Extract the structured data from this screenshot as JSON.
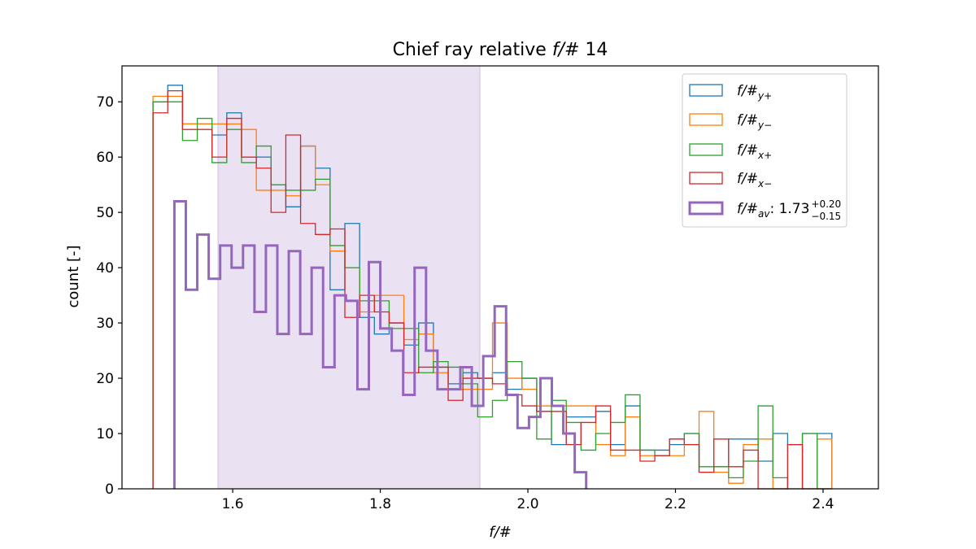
{
  "chart_data": {
    "type": "histogram-step",
    "title": "Chief ray relative f/# 14",
    "xlabel": "f/#",
    "ylabel": "count [-]",
    "xlim": [
      1.45,
      2.475
    ],
    "ylim": [
      0,
      76.5
    ],
    "xticks": [
      1.6,
      1.8,
      2.0,
      2.2,
      2.4
    ],
    "xtick_labels": [
      "1.6",
      "1.8",
      "2.0",
      "2.2",
      "2.4"
    ],
    "yticks": [
      0,
      10,
      20,
      30,
      40,
      50,
      60,
      70
    ],
    "ytick_labels": [
      "0",
      "10",
      "20",
      "30",
      "40",
      "50",
      "60",
      "70"
    ],
    "grid": false,
    "legend_position": "top-right",
    "shaded_interval": {
      "x0": 1.58,
      "x1": 1.935,
      "color": "#9467bd"
    },
    "series": [
      {
        "name_main": "f/#",
        "name_sub": "y+",
        "name_sup": "",
        "color": "#1f77b4",
        "linewidth": 1.3,
        "start": 1.492,
        "width": 0.02,
        "values": [
          70,
          73,
          66,
          66,
          64,
          68,
          60,
          60,
          55,
          51,
          62,
          58,
          36,
          48,
          31,
          28,
          30,
          26,
          30,
          22,
          19,
          21,
          20,
          21,
          18,
          20,
          14,
          8,
          13,
          13,
          14,
          8,
          15,
          7,
          7,
          8,
          10,
          3,
          4,
          9,
          9,
          5,
          10,
          8,
          10,
          10
        ]
      },
      {
        "name_main": "f/#",
        "name_sub": "y−",
        "name_sup": "",
        "color": "#ff7f0e",
        "linewidth": 1.3,
        "start": 1.492,
        "width": 0.02,
        "values": [
          71,
          71,
          66,
          66,
          66,
          66,
          65,
          54,
          54,
          53,
          62,
          55,
          43,
          40,
          32,
          35,
          35,
          27,
          28,
          21,
          18,
          18,
          18,
          30,
          20,
          18,
          15,
          15,
          15,
          15,
          8,
          6,
          13,
          6,
          6,
          6,
          8,
          14,
          3,
          1,
          8,
          9,
          0,
          8,
          0,
          9
        ]
      },
      {
        "name_main": "f/#",
        "name_sub": "x+",
        "name_sup": "",
        "color": "#2ca02c",
        "linewidth": 1.3,
        "start": 1.492,
        "width": 0.02,
        "values": [
          70,
          70,
          63,
          67,
          59,
          65,
          59,
          62,
          55,
          54,
          54,
          56,
          44,
          40,
          34,
          34,
          29,
          29,
          21,
          23,
          22,
          19,
          13,
          16,
          23,
          20,
          9,
          16,
          12,
          7,
          10,
          12,
          17,
          7,
          6,
          9,
          10,
          4,
          4,
          2,
          5,
          15,
          2,
          0,
          10,
          0
        ]
      },
      {
        "name_main": "f/#",
        "name_sub": "x−",
        "name_sup": "",
        "color": "#d62728",
        "linewidth": 1.3,
        "start": 1.492,
        "width": 0.02,
        "values": [
          68,
          72,
          65,
          65,
          60,
          67,
          60,
          58,
          50,
          64,
          48,
          46,
          47,
          31,
          35,
          32,
          30,
          21,
          22,
          22,
          16,
          20,
          20,
          19,
          17,
          15,
          14,
          14,
          8,
          12,
          15,
          7,
          7,
          5,
          6,
          9,
          8,
          3,
          9,
          4,
          7,
          0,
          0,
          8,
          0,
          0
        ]
      },
      {
        "name_main": "f/#",
        "name_sub": "av",
        "name_sup": ": 1.73",
        "name_upper": "+0.20",
        "name_lower": "−0.15",
        "color": "#9467bd",
        "linewidth": 3,
        "start": 1.521,
        "width": 0.0155,
        "values": [
          52,
          36,
          46,
          38,
          44,
          40,
          44,
          32,
          44,
          28,
          43,
          28,
          40,
          22,
          35,
          34,
          18,
          41,
          29,
          25,
          17,
          40,
          25,
          18,
          18,
          22,
          15,
          24,
          33,
          17,
          11,
          13,
          20,
          15,
          10,
          3
        ]
      }
    ]
  }
}
